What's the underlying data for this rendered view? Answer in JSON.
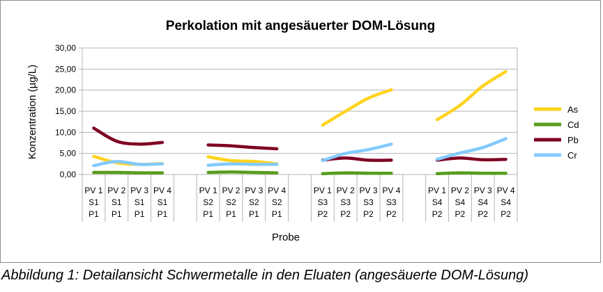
{
  "chart_data": {
    "type": "line",
    "title": "Perkolation mit angesäuerter DOM-Lösung",
    "xlabel": "Probe",
    "ylabel": "Konzentration (µg/L)",
    "ylim": [
      0,
      30
    ],
    "yticks": [
      "0,00",
      "5,00",
      "10,00",
      "15,00",
      "20,00",
      "25,00",
      "30,00"
    ],
    "groups": [
      {
        "name": "S1 P1",
        "categories": [
          [
            "PV 1",
            "S1",
            "P1"
          ],
          [
            "PV 2",
            "S1",
            "P1"
          ],
          [
            "PV 3",
            "S1",
            "P1"
          ],
          [
            "PV 4",
            "S1",
            "P1"
          ]
        ]
      },
      {
        "name": "S2 P1",
        "categories": [
          [
            "PV 1",
            "S2",
            "P1"
          ],
          [
            "PV 2",
            "S2",
            "P1"
          ],
          [
            "PV 3",
            "S2",
            "P1"
          ],
          [
            "PV 4",
            "S2",
            "P1"
          ]
        ]
      },
      {
        "name": "S3 P2",
        "categories": [
          [
            "PV 1",
            "S3",
            "P2"
          ],
          [
            "PV 2",
            "S3",
            "P2"
          ],
          [
            "PV 3",
            "S3",
            "P2"
          ],
          [
            "PV 4",
            "S3",
            "P2"
          ]
        ]
      },
      {
        "name": "S4 P2",
        "categories": [
          [
            "PV 1",
            "S4",
            "P2"
          ],
          [
            "PV 2",
            "S4",
            "P2"
          ],
          [
            "PV 3",
            "S4",
            "P2"
          ],
          [
            "PV 4",
            "S4",
            "P2"
          ]
        ]
      }
    ],
    "series": [
      {
        "name": "As",
        "color": "#ffd320",
        "values": [
          [
            4.3,
            2.8,
            2.4,
            2.6
          ],
          [
            4.2,
            3.3,
            3.1,
            2.5
          ],
          [
            11.7,
            15.0,
            18.1,
            20.1
          ],
          [
            13.0,
            16.4,
            21.0,
            24.4
          ]
        ]
      },
      {
        "name": "Cd",
        "color": "#579d1c",
        "values": [
          [
            0.5,
            0.5,
            0.4,
            0.4
          ],
          [
            0.5,
            0.6,
            0.5,
            0.4
          ],
          [
            0.2,
            0.4,
            0.3,
            0.3
          ],
          [
            0.2,
            0.4,
            0.3,
            0.3
          ]
        ]
      },
      {
        "name": "Pb",
        "color": "#7e0021",
        "values": [
          [
            11.0,
            7.9,
            7.2,
            7.6
          ],
          [
            7.0,
            6.8,
            6.4,
            6.1
          ],
          [
            3.4,
            3.9,
            3.4,
            3.4
          ],
          [
            3.4,
            3.9,
            3.5,
            3.6
          ]
        ]
      },
      {
        "name": "Cr",
        "color": "#83caff",
        "values": [
          [
            2.1,
            3.1,
            2.4,
            2.5
          ],
          [
            2.2,
            2.5,
            2.4,
            2.4
          ],
          [
            3.3,
            5.0,
            5.9,
            7.2
          ],
          [
            3.6,
            5.1,
            6.4,
            8.5
          ]
        ]
      }
    ],
    "legend_position": "right",
    "grid": "horizontal"
  },
  "caption": "Abbildung 1: Detailansicht Schwermetalle in den Eluaten (angesäuerte DOM-Lösung)"
}
